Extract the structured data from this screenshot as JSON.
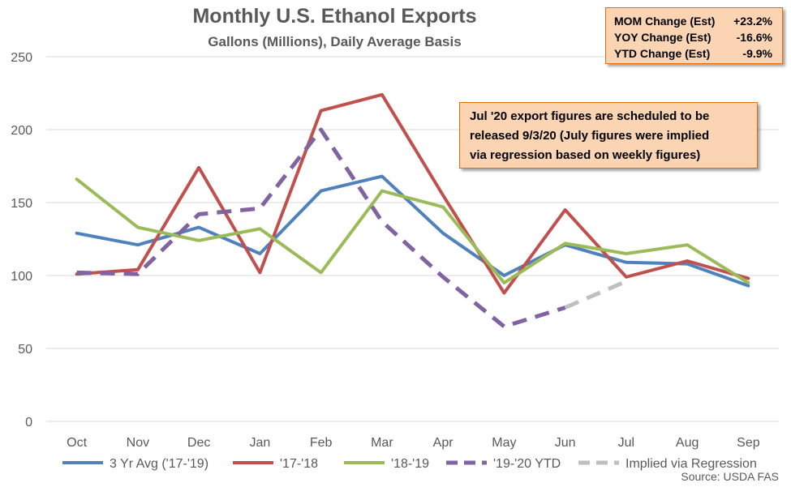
{
  "chart_data": {
    "type": "line",
    "title": "Monthly U.S. Ethanol Exports",
    "subtitle": "Gallons (Millions), Daily Average Basis",
    "categories": [
      "Oct",
      "Nov",
      "Dec",
      "Jan",
      "Feb",
      "Mar",
      "Apr",
      "May",
      "Jun",
      "Jul",
      "Aug",
      "Sep"
    ],
    "ylim": [
      0,
      250
    ],
    "yticks": [
      0,
      50,
      100,
      150,
      200,
      250
    ],
    "grid": true,
    "legend_position": "bottom",
    "series": [
      {
        "name": "3 Yr Avg ('17-'19)",
        "color": "#4f81bd",
        "dash": false,
        "values": [
          129,
          121,
          133,
          115,
          158,
          168,
          129,
          100,
          121,
          109,
          108,
          93
        ]
      },
      {
        "name": "'17-'18",
        "color": "#c0504d",
        "dash": false,
        "values": [
          101,
          104,
          174,
          102,
          213,
          224,
          155,
          88,
          145,
          99,
          110,
          98
        ]
      },
      {
        "name": "'18-'19",
        "color": "#9bbb59",
        "dash": false,
        "values": [
          166,
          133,
          124,
          132,
          102,
          158,
          147,
          95,
          122,
          115,
          121,
          95
        ]
      },
      {
        "name": "'19-'20 YTD",
        "color": "#8064a2",
        "dash": true,
        "values": [
          102,
          101,
          142,
          146,
          200,
          137,
          99,
          65,
          78,
          null,
          null,
          null
        ]
      },
      {
        "name": "Implied via Regression",
        "color": "#bfbfbf",
        "dash": true,
        "values": [
          null,
          null,
          null,
          null,
          null,
          null,
          null,
          null,
          78,
          96,
          null,
          null
        ]
      }
    ]
  },
  "stats": [
    {
      "label": "MOM Change (Est)",
      "value": "+23.2%"
    },
    {
      "label": "YOY Change (Est)",
      "value": "-16.6%"
    },
    {
      "label": "YTD Change (Est)",
      "value": "-9.9%"
    }
  ],
  "note_lines": [
    "Jul '20 export figures are scheduled to be",
    "released 9/3/20 (July figures were implied",
    "via regression based on weekly figures)"
  ],
  "source": "Source: USDA FAS"
}
